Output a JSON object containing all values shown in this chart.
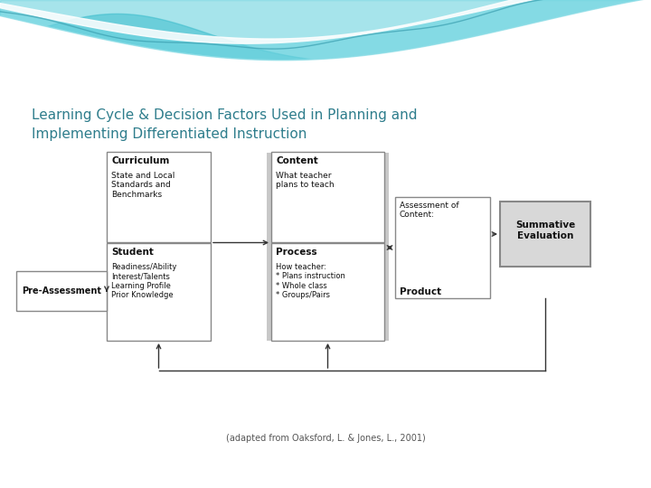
{
  "title_line1": "Learning Cycle & Decision Factors Used in Planning and",
  "title_line2": "Implementing Differentiated Instruction",
  "title_color": "#2e7d8c",
  "caption": "(adapted from Oaksford, L. & Jones, L., 2001)",
  "boxes": {
    "curriculum": {
      "label": "Curriculum",
      "body": "State and Local\nStandards and\nBenchmarks",
      "bg": "#ffffff",
      "edge": "#888888"
    },
    "content": {
      "label": "Content",
      "body": "What teacher\nplans to teach",
      "bg": "#ffffff",
      "edge": "#888888"
    },
    "student": {
      "label": "Student",
      "body": "Readiness/Ability\nInterest/Talents\nLearning Profile\nPrior Knowledge",
      "bg": "#ffffff",
      "edge": "#888888"
    },
    "process": {
      "label": "Process",
      "body": "How teacher:\n* Plans instruction\n* Whole class\n* Groups/Pairs",
      "bg": "#ffffff",
      "edge": "#888888"
    },
    "assessment": {
      "label": "Assessment of\nContent:",
      "body": "Product",
      "bg": "#ffffff",
      "edge": "#888888"
    },
    "summative": {
      "label": "Summative\nEvaluation",
      "bg": "#dddddd",
      "edge": "#888888"
    },
    "preassessment": {
      "label": "Pre-Assessment",
      "bg": "#ffffff",
      "edge": "#888888"
    }
  }
}
